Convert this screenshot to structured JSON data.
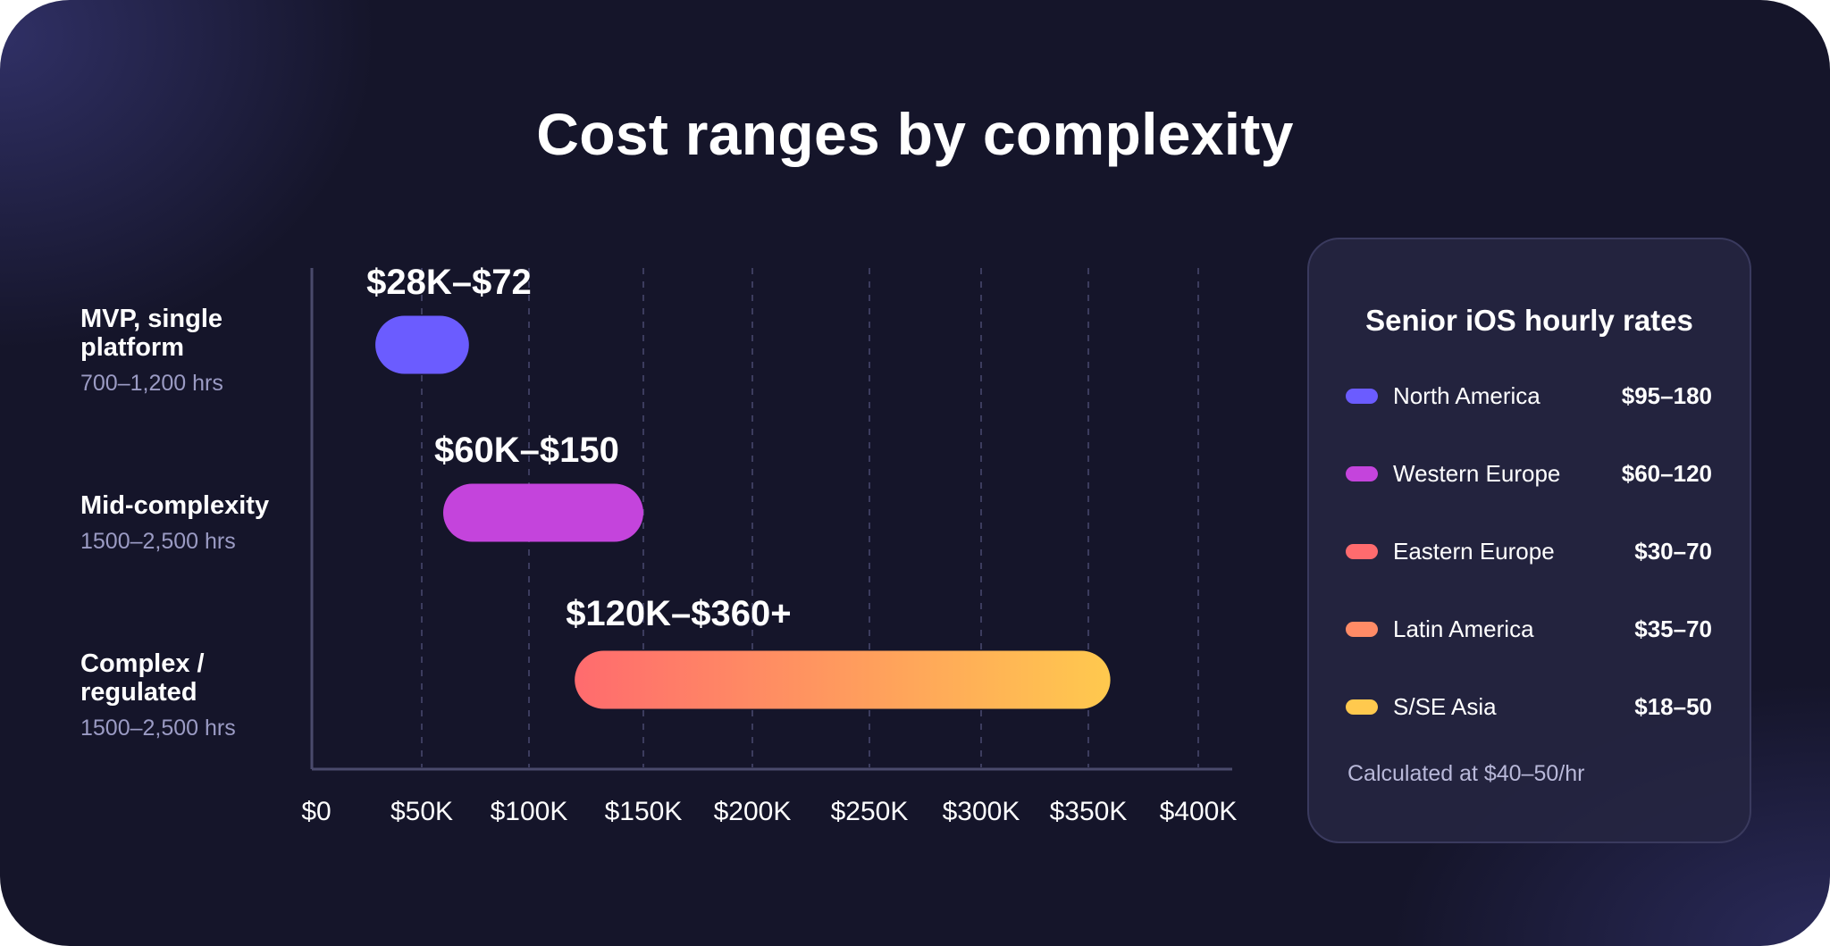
{
  "chart_data": {
    "type": "bar",
    "title": "Cost ranges by complexity",
    "orientation": "horizontal-range",
    "x_ticks": [
      "$0",
      "$50K",
      "$100K",
      "$150K",
      "$200K",
      "$250K",
      "$300K",
      "$350K",
      "$400K"
    ],
    "xlim": [
      0,
      400000
    ],
    "grid": "vertical-dashed",
    "categories": [
      {
        "name": "MVP, single platform",
        "hours": "700–1,200 hrs",
        "range": [
          28000,
          72000
        ],
        "range_label": "$28K–$72",
        "color_start": "#6b5cff",
        "color_end": "#6b5cff"
      },
      {
        "name": "Mid-complexity",
        "hours": "1500–2,500 hrs",
        "range": [
          60000,
          150000
        ],
        "range_label": "$60K–$150",
        "color_start": "#c444dc",
        "color_end": "#c444dc"
      },
      {
        "name": "Complex / regulated",
        "hours": "1500–2,500 hrs",
        "range": [
          120000,
          360000
        ],
        "range_label": "$120K–$360+",
        "color_start": "#ff6b6e",
        "color_end": "#ffc94e"
      }
    ]
  },
  "rates_panel": {
    "title": "Senior iOS hourly rates",
    "rows": [
      {
        "region": "North America",
        "rate": "$95–180",
        "color": "#6b5cff"
      },
      {
        "region": "Western Europe",
        "rate": "$60–120",
        "color": "#c444dc"
      },
      {
        "region": "Eastern Europe",
        "rate": "$30–70",
        "color": "#ff6b6e"
      },
      {
        "region": "Latin America",
        "rate": "$35–70",
        "color": "#ff8b66"
      },
      {
        "region": "S/SE Asia",
        "rate": "$18–50",
        "color": "#ffc94e"
      }
    ],
    "note": "Calculated at $40–50/hr"
  }
}
